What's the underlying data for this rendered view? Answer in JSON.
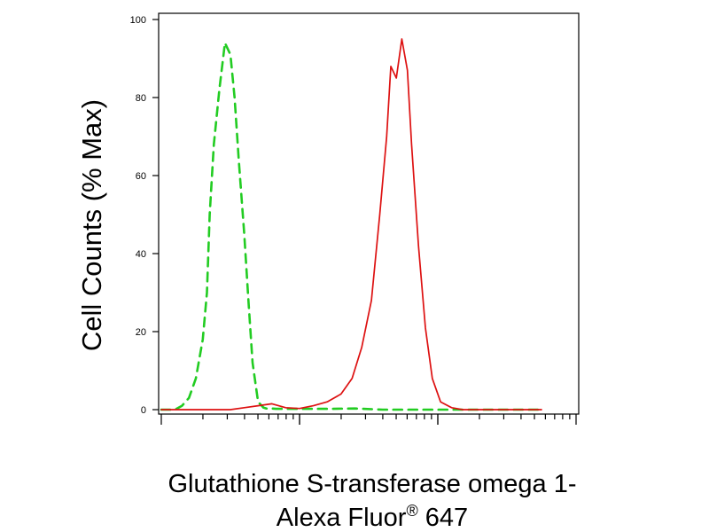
{
  "chart_data": {
    "type": "line",
    "xlabel_line1": "Glutathione S-transferase omega 1-",
    "xlabel_line2_main": "Alexa Fluor",
    "xlabel_line2_mark": "®",
    "xlabel_line2_end": " 647",
    "ylabel": "Cell Counts (% Max)",
    "ylim": [
      0,
      100
    ],
    "yticks": [
      "0",
      "20",
      "40",
      "60",
      "80",
      "100"
    ],
    "xscale": "log",
    "xdecades": 3,
    "grid": false,
    "series": [
      {
        "color": "#22cc22",
        "dashed": true,
        "x": [
          0.0,
          0.1,
          0.15,
          0.2,
          0.25,
          0.3,
          0.33,
          0.35,
          0.38,
          0.42,
          0.46,
          0.5,
          0.53,
          0.56,
          0.6,
          0.63,
          0.66,
          0.7,
          0.74,
          0.76,
          0.78,
          0.8,
          0.83,
          0.9,
          1.0,
          1.2,
          1.4,
          1.6,
          2.0,
          2.5,
          2.75
        ],
        "y": [
          0,
          0,
          1,
          3,
          8,
          18,
          30,
          50,
          68,
          82,
          94,
          91,
          80,
          64,
          45,
          28,
          12,
          2,
          0.5,
          0.3,
          0.2,
          0.3,
          0.2,
          0.2,
          0.2,
          0.2,
          0.3,
          0,
          0,
          0,
          0
        ]
      },
      {
        "color": "#dd1111",
        "dashed": false,
        "x": [
          0.0,
          0.5,
          0.6,
          0.7,
          0.8,
          0.9,
          1.0,
          1.1,
          1.2,
          1.3,
          1.38,
          1.45,
          1.52,
          1.58,
          1.63,
          1.66,
          1.7,
          1.74,
          1.78,
          1.81,
          1.86,
          1.91,
          1.96,
          2.02,
          2.1,
          2.18,
          2.25,
          2.5,
          2.75
        ],
        "y": [
          0,
          0,
          0.5,
          1,
          1.5,
          0.5,
          0.3,
          1,
          2,
          4,
          8,
          16,
          28,
          50,
          70,
          88,
          85,
          95,
          87,
          68,
          42,
          21,
          8,
          2,
          0.5,
          0,
          0,
          0,
          0
        ]
      }
    ]
  }
}
